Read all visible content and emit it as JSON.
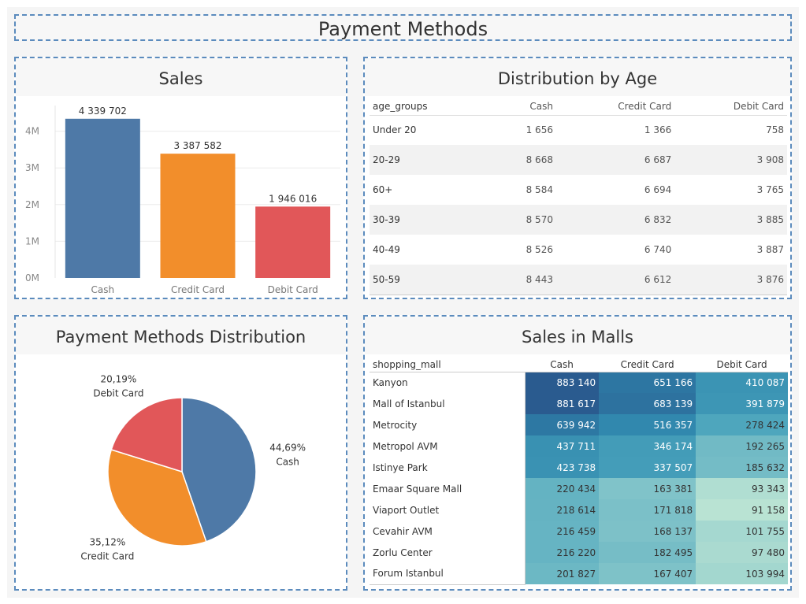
{
  "page_title": "Payment Methods",
  "sales": {
    "title": "Sales",
    "chart_data": {
      "type": "bar",
      "categories": [
        "Cash",
        "Credit Card",
        "Debit Card"
      ],
      "values": [
        4339702,
        3387582,
        1946016
      ],
      "value_labels": [
        "4 339 702",
        "3 387 582",
        "1 946 016"
      ],
      "colors": [
        "#4e79a7",
        "#f28e2b",
        "#e15759"
      ],
      "yticks": [
        0,
        1000000,
        2000000,
        3000000,
        4000000
      ],
      "ytick_labels": [
        "0M",
        "1M",
        "2M",
        "3M",
        "4M"
      ],
      "ylim": [
        0,
        4700000
      ],
      "grid": true
    }
  },
  "age": {
    "title": "Distribution by Age",
    "columns": [
      "age_groups",
      "Cash",
      "Credit Card",
      "Debit Card"
    ],
    "rows": [
      [
        "Under 20",
        "1 656",
        "1 366",
        "758"
      ],
      [
        "20-29",
        "8 668",
        "6 687",
        "3 908"
      ],
      [
        "60+",
        "8 584",
        "6 694",
        "3 765"
      ],
      [
        "30-39",
        "8 570",
        "6 832",
        "3 885"
      ],
      [
        "40-49",
        "8 526",
        "6 740",
        "3 887"
      ],
      [
        "50-59",
        "8 443",
        "6 612",
        "3 876"
      ]
    ]
  },
  "pie": {
    "title": "Payment Methods Distribution",
    "chart_data": {
      "type": "pie",
      "slices": [
        {
          "name": "Cash",
          "percent": 44.69,
          "label": "44,69%",
          "color": "#4e79a7"
        },
        {
          "name": "Credit Card",
          "percent": 35.12,
          "label": "35,12%",
          "color": "#f28e2b"
        },
        {
          "name": "Debit Card",
          "percent": 20.19,
          "label": "20,19%",
          "color": "#e15759"
        }
      ]
    }
  },
  "malls": {
    "title": "Sales in Malls",
    "columns": [
      "shopping_mall",
      "Cash",
      "Credit Card",
      "Debit Card"
    ],
    "rows": [
      {
        "mall": "Kanyon",
        "values": [
          883140,
          651166,
          410087
        ],
        "labels": [
          "883 140",
          "651 166",
          "410 087"
        ]
      },
      {
        "mall": "Mall of Istanbul",
        "values": [
          881617,
          683139,
          391879
        ],
        "labels": [
          "881 617",
          "683 139",
          "391 879"
        ]
      },
      {
        "mall": "Metrocity",
        "values": [
          639942,
          516357,
          278424
        ],
        "labels": [
          "639 942",
          "516 357",
          "278 424"
        ]
      },
      {
        "mall": "Metropol AVM",
        "values": [
          437711,
          346174,
          192265
        ],
        "labels": [
          "437 711",
          "346 174",
          "192 265"
        ]
      },
      {
        "mall": "Istinye Park",
        "values": [
          423738,
          337507,
          185632
        ],
        "labels": [
          "423 738",
          "337 507",
          "185 632"
        ]
      },
      {
        "mall": "Emaar Square Mall",
        "values": [
          220434,
          163381,
          93343
        ],
        "labels": [
          "220 434",
          "163 381",
          "93 343"
        ]
      },
      {
        "mall": "Viaport Outlet",
        "values": [
          218614,
          171818,
          91158
        ],
        "labels": [
          "218 614",
          "171 818",
          "91 158"
        ]
      },
      {
        "mall": "Cevahir AVM",
        "values": [
          216459,
          168137,
          101755
        ],
        "labels": [
          "216 459",
          "168 137",
          "101 755"
        ]
      },
      {
        "mall": "Zorlu Center",
        "values": [
          216220,
          182495,
          97480
        ],
        "labels": [
          "216 220",
          "182 495",
          "97 480"
        ]
      },
      {
        "mall": "Forum Istanbul",
        "values": [
          201827,
          167407,
          103994
        ],
        "labels": [
          "201 827",
          "167 407",
          "103 994"
        ]
      }
    ],
    "color_scale": [
      "#b9e3d3",
      "#8ecbcc",
      "#4aa4bc",
      "#2f86ad",
      "#2a5b8f"
    ]
  }
}
